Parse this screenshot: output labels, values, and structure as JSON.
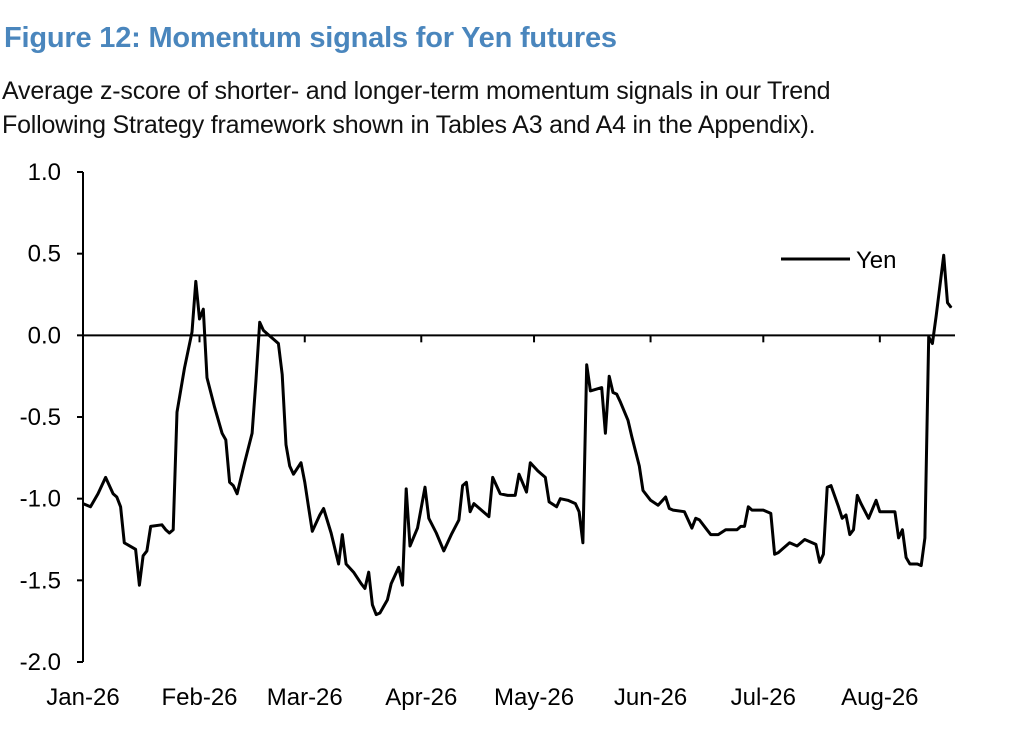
{
  "figure": {
    "title": "Figure 12: Momentum signals for Yen futures",
    "subtitle_line1": "Average z-score of shorter- and longer-term momentum signals in our Trend",
    "subtitle_line2": "Following Strategy framework shown in Tables A3 and A4 in the Appendix)."
  },
  "colors": {
    "title": "#4a86bd",
    "line": "#000000"
  },
  "chart_data": {
    "type": "line",
    "title": "Figure 12: Momentum signals for Yen futures",
    "xlabel": "",
    "ylabel": "",
    "ylim": [
      -2.0,
      1.0
    ],
    "yticks": [
      "1.0",
      "0.5",
      "0.0",
      "-0.5",
      "-1.0",
      "-1.5",
      "-2.0"
    ],
    "xticks": [
      "Jan-26",
      "Feb-26",
      "Mar-26",
      "Apr-26",
      "May-26",
      "Jun-26",
      "Jul-26",
      "Aug-26"
    ],
    "legend": {
      "position": "top-right",
      "entries": [
        "Yen"
      ]
    },
    "grid": false,
    "series": [
      {
        "name": "Yen",
        "color": "#000000",
        "points": [
          [
            "Jan-01",
            -1.03
          ],
          [
            "Jan-03",
            -1.05
          ],
          [
            "Jan-05",
            -0.97
          ],
          [
            "Jan-07",
            -0.87
          ],
          [
            "Jan-09",
            -0.97
          ],
          [
            "Jan-10",
            -0.99
          ],
          [
            "Jan-11",
            -1.05
          ],
          [
            "Jan-12",
            -1.27
          ],
          [
            "Jan-15",
            -1.31
          ],
          [
            "Jan-16",
            -1.53
          ],
          [
            "Jan-17",
            -1.35
          ],
          [
            "Jan-18",
            -1.32
          ],
          [
            "Jan-19",
            -1.17
          ],
          [
            "Jan-22",
            -1.16
          ],
          [
            "Jan-23",
            -1.19
          ],
          [
            "Jan-24",
            -1.21
          ],
          [
            "Jan-25",
            -1.19
          ],
          [
            "Jan-26",
            -0.47
          ],
          [
            "Jan-28",
            -0.2
          ],
          [
            "Jan-30",
            0.02
          ],
          [
            "Jan-31",
            0.33
          ],
          [
            "Feb-01",
            0.1
          ],
          [
            "Feb-02",
            0.16
          ],
          [
            "Feb-03",
            -0.26
          ],
          [
            "Feb-05",
            -0.44
          ],
          [
            "Feb-07",
            -0.6
          ],
          [
            "Feb-08",
            -0.64
          ],
          [
            "Feb-09",
            -0.9
          ],
          [
            "Feb-10",
            -0.92
          ],
          [
            "Feb-11",
            -0.97
          ],
          [
            "Feb-13",
            -0.78
          ],
          [
            "Feb-15",
            -0.6
          ],
          [
            "Feb-16",
            -0.28
          ],
          [
            "Feb-17",
            0.08
          ],
          [
            "Feb-18",
            0.03
          ],
          [
            "Feb-19",
            0.01
          ],
          [
            "Feb-21",
            -0.03
          ],
          [
            "Feb-22",
            -0.05
          ],
          [
            "Feb-23",
            -0.24
          ],
          [
            "Feb-24",
            -0.67
          ],
          [
            "Feb-25",
            -0.8
          ],
          [
            "Feb-26",
            -0.85
          ],
          [
            "Feb-28",
            -0.78
          ],
          [
            "Mar-01",
            -0.9
          ],
          [
            "Mar-02",
            -1.05
          ],
          [
            "Mar-03",
            -1.2
          ],
          [
            "Mar-05",
            -1.1
          ],
          [
            "Mar-06",
            -1.06
          ],
          [
            "Mar-08",
            -1.21
          ],
          [
            "Mar-10",
            -1.4
          ],
          [
            "Mar-11",
            -1.22
          ],
          [
            "Mar-12",
            -1.4
          ],
          [
            "Mar-14",
            -1.45
          ],
          [
            "Mar-16",
            -1.52
          ],
          [
            "Mar-17",
            -1.55
          ],
          [
            "Mar-18",
            -1.45
          ],
          [
            "Mar-19",
            -1.65
          ],
          [
            "Mar-20",
            -1.71
          ],
          [
            "Mar-21",
            -1.7
          ],
          [
            "Mar-23",
            -1.62
          ],
          [
            "Mar-24",
            -1.52
          ],
          [
            "Mar-26",
            -1.42
          ],
          [
            "Mar-27",
            -1.53
          ],
          [
            "Mar-28",
            -0.94
          ],
          [
            "Mar-29",
            -1.29
          ],
          [
            "Mar-31",
            -1.18
          ],
          [
            "Apr-02",
            -0.93
          ],
          [
            "Apr-03",
            -1.12
          ],
          [
            "Apr-05",
            -1.21
          ],
          [
            "Apr-07",
            -1.32
          ],
          [
            "Apr-09",
            -1.22
          ],
          [
            "Apr-11",
            -1.13
          ],
          [
            "Apr-12",
            -0.92
          ],
          [
            "Apr-13",
            -0.9
          ],
          [
            "Apr-14",
            -1.08
          ],
          [
            "Apr-15",
            -1.03
          ],
          [
            "Apr-17",
            -1.07
          ],
          [
            "Apr-19",
            -1.11
          ],
          [
            "Apr-20",
            -0.87
          ],
          [
            "Apr-22",
            -0.97
          ],
          [
            "Apr-24",
            -0.98
          ],
          [
            "Apr-26",
            -0.98
          ],
          [
            "Apr-27",
            -0.85
          ],
          [
            "Apr-29",
            -0.96
          ],
          [
            "Apr-30",
            -0.78
          ],
          [
            "May-02",
            -0.83
          ],
          [
            "May-04",
            -0.87
          ],
          [
            "May-05",
            -1.02
          ],
          [
            "May-07",
            -1.05
          ],
          [
            "May-08",
            -1.0
          ],
          [
            "May-10",
            -1.01
          ],
          [
            "May-12",
            -1.03
          ],
          [
            "May-13",
            -1.08
          ],
          [
            "May-14",
            -1.27
          ],
          [
            "May-15",
            -0.18
          ],
          [
            "May-16",
            -0.34
          ],
          [
            "May-19",
            -0.32
          ],
          [
            "May-20",
            -0.6
          ],
          [
            "May-21",
            -0.25
          ],
          [
            "May-22",
            -0.35
          ],
          [
            "May-23",
            -0.36
          ],
          [
            "May-24",
            -0.41
          ],
          [
            "May-26",
            -0.52
          ],
          [
            "May-27",
            -0.62
          ],
          [
            "May-29",
            -0.8
          ],
          [
            "May-30",
            -0.95
          ],
          [
            "Jun-01",
            -1.01
          ],
          [
            "Jun-03",
            -1.04
          ],
          [
            "Jun-05",
            -0.99
          ],
          [
            "Jun-06",
            -1.06
          ],
          [
            "Jun-07",
            -1.07
          ],
          [
            "Jun-10",
            -1.08
          ],
          [
            "Jun-12",
            -1.18
          ],
          [
            "Jun-13",
            -1.12
          ],
          [
            "Jun-14",
            -1.13
          ],
          [
            "Jun-16",
            -1.19
          ],
          [
            "Jun-17",
            -1.22
          ],
          [
            "Jun-19",
            -1.22
          ],
          [
            "Jun-21",
            -1.19
          ],
          [
            "Jun-24",
            -1.19
          ],
          [
            "Jun-25",
            -1.17
          ],
          [
            "Jun-26",
            -1.17
          ],
          [
            "Jun-27",
            -1.05
          ],
          [
            "Jun-28",
            -1.07
          ],
          [
            "Jul-01",
            -1.07
          ],
          [
            "Jul-03",
            -1.09
          ],
          [
            "Jul-04",
            -1.34
          ],
          [
            "Jul-05",
            -1.33
          ],
          [
            "Jul-06",
            -1.31
          ],
          [
            "Jul-08",
            -1.27
          ],
          [
            "Jul-10",
            -1.29
          ],
          [
            "Jul-12",
            -1.25
          ],
          [
            "Jul-14",
            -1.27
          ],
          [
            "Jul-15",
            -1.28
          ],
          [
            "Jul-16",
            -1.39
          ],
          [
            "Jul-17",
            -1.34
          ],
          [
            "Jul-18",
            -0.93
          ],
          [
            "Jul-19",
            -0.92
          ],
          [
            "Jul-21",
            -1.05
          ],
          [
            "Jul-22",
            -1.12
          ],
          [
            "Jul-23",
            -1.1
          ],
          [
            "Jul-24",
            -1.22
          ],
          [
            "Jul-25",
            -1.19
          ],
          [
            "Jul-26",
            -0.98
          ],
          [
            "Jul-27",
            -1.03
          ],
          [
            "Jul-29",
            -1.12
          ],
          [
            "Jul-31",
            -1.01
          ],
          [
            "Aug-01",
            -1.08
          ],
          [
            "Aug-02",
            -1.08
          ],
          [
            "Aug-05",
            -1.08
          ],
          [
            "Aug-06",
            -1.24
          ],
          [
            "Aug-07",
            -1.19
          ],
          [
            "Aug-08",
            -1.36
          ],
          [
            "Aug-09",
            -1.4
          ],
          [
            "Aug-11",
            -1.4
          ],
          [
            "Aug-12",
            -1.41
          ],
          [
            "Aug-13",
            -1.24
          ],
          [
            "Aug-14",
            -0.01
          ],
          [
            "Aug-15",
            -0.05
          ],
          [
            "Aug-16",
            0.12
          ],
          [
            "Aug-18",
            0.49
          ],
          [
            "Aug-19",
            0.2
          ],
          [
            "Aug-20",
            0.17
          ]
        ]
      }
    ]
  }
}
